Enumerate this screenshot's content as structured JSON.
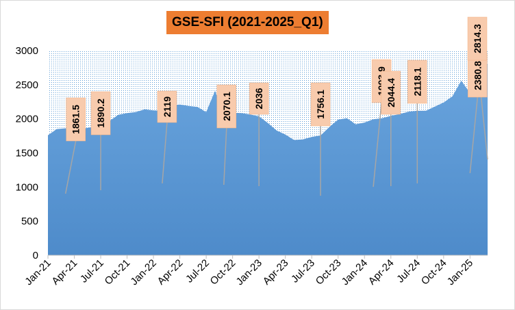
{
  "chart_data": {
    "type": "area",
    "title": "GSE-SFI (2021-2025_Q1)",
    "xlabel": "",
    "ylabel": "",
    "ylim": [
      0,
      3000
    ],
    "y_ticks": [
      0,
      500,
      1000,
      1500,
      2000,
      2500,
      3000
    ],
    "x_tick_labels": [
      "Jan-21",
      "Apr-21",
      "Jul-21",
      "Oct-21",
      "Jan-22",
      "Apr-22",
      "Jul-22",
      "Oct-22",
      "Jan-23",
      "Apr-23",
      "Jul-23",
      "Oct-23",
      "Jan-24",
      "Apr-24",
      "Jul-24",
      "Oct-24",
      "Jan-25"
    ],
    "grid": false,
    "legend": "none",
    "colors": {
      "area": "#5b9bd5",
      "background_pattern": "#5b9bd5",
      "label_box": "#f8cbad",
      "title_box": "#ed7d31"
    },
    "series": [
      {
        "x": [
          "2021-01",
          "2021-02",
          "2021-03",
          "2021-04",
          "2021-05",
          "2021-06",
          "2021-07",
          "2021-08",
          "2021-09",
          "2021-10",
          "2021-11",
          "2021-12",
          "2022-01",
          "2022-02",
          "2022-03",
          "2022-04",
          "2022-05",
          "2022-06",
          "2022-07",
          "2022-08",
          "2022-09",
          "2022-10",
          "2022-11",
          "2022-12",
          "2023-01",
          "2023-02",
          "2023-03",
          "2023-04",
          "2023-05",
          "2023-06",
          "2023-07",
          "2023-08",
          "2023-09",
          "2023-10",
          "2023-11",
          "2023-12",
          "2024-01",
          "2024-02",
          "2024-03",
          "2024-04",
          "2024-05",
          "2024-06",
          "2024-07",
          "2024-08",
          "2024-09",
          "2024-10",
          "2024-11",
          "2024-12",
          "2025-01",
          "2025-02",
          "2025-03"
        ],
        "values": [
          1760,
          1850,
          1861.5,
          1860,
          1855,
          1880,
          1890.2,
          1970,
          2060,
          2085,
          2100,
          2140,
          2125,
          2119,
          2200,
          2210,
          2190,
          2175,
          2100,
          2410,
          2070.1,
          2090,
          2085,
          2065,
          2036,
          1940,
          1830,
          1770,
          1690,
          1700,
          1735,
          1756.1,
          1880,
          1990,
          2010,
          1920,
          1945,
          1993.9,
          2010,
          2044.4,
          2070,
          2105,
          2118.1,
          2120,
          2180,
          2240,
          2330,
          2560,
          2380.8,
          2520,
          2814.3
        ]
      }
    ],
    "data_labels": [
      {
        "x": "2021-03",
        "text": "1861.5"
      },
      {
        "x": "2021-07",
        "text": "1890.2"
      },
      {
        "x": "2022-02",
        "text": "2119"
      },
      {
        "x": "2022-09",
        "text": "2070.1"
      },
      {
        "x": "2023-01",
        "text": "2036"
      },
      {
        "x": "2023-08",
        "text": "1756.1"
      },
      {
        "x": "2024-02",
        "text": "1993.9"
      },
      {
        "x": "2024-04",
        "text": "2044.4"
      },
      {
        "x": "2024-07",
        "text": "2118.1"
      },
      {
        "x": "2025-01",
        "text": "2380.8"
      },
      {
        "x": "2025-03",
        "text": "2814.3"
      }
    ]
  }
}
